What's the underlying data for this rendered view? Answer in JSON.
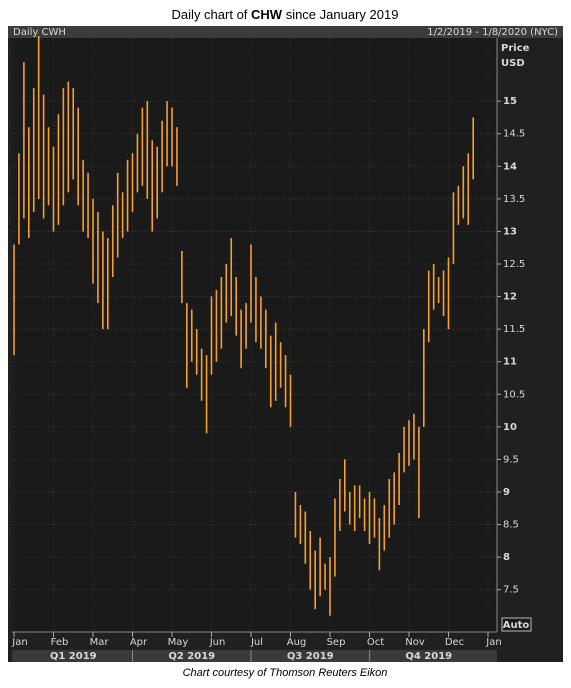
{
  "chart_data": {
    "type": "range",
    "title_parts": [
      "Daily chart of ",
      "CHW",
      " since January 2019"
    ],
    "date_range": "1/2/2019 - 1/8/2020 (NYC)",
    "axis_title": [
      "Price",
      "USD"
    ],
    "scale_mode": "Auto",
    "caption": "Chart courtesy of Thomson Reuters Eikon",
    "categories": [
      "Jan",
      null,
      null,
      null,
      null,
      null,
      null,
      null,
      "Feb",
      null,
      null,
      null,
      null,
      null,
      null,
      null,
      "Mar",
      null,
      null,
      null,
      null,
      null,
      null,
      null,
      "Apr",
      null,
      null,
      null,
      null,
      null,
      null,
      null,
      "May",
      null,
      null,
      null,
      null,
      null,
      null,
      null,
      "Jun",
      null,
      null,
      null,
      null,
      null,
      null,
      null,
      "Jul",
      null,
      null,
      null,
      null,
      null,
      null,
      null,
      "Aug",
      null,
      null,
      null,
      null,
      null,
      null,
      null,
      "Sep",
      null,
      null,
      null,
      null,
      null,
      null,
      null,
      "Oct",
      null,
      null,
      null,
      null,
      null,
      null,
      null,
      "Nov",
      null,
      null,
      null,
      null,
      null,
      null,
      null,
      "Dec",
      null,
      null,
      null,
      null,
      null,
      null,
      null,
      "Jan"
    ],
    "quarters": [
      "Q1 2019",
      "Q2 2019",
      "Q3 2019",
      "Q4 2019"
    ],
    "series": [
      {
        "name": "Daily CWH",
        "color": "#f5a033",
        "low": [
          11.1,
          12.8,
          13.2,
          12.9,
          13.3,
          13.5,
          13.2,
          13.4,
          13.0,
          13.1,
          13.4,
          13.6,
          13.8,
          13.4,
          13.0,
          12.9,
          12.2,
          11.9,
          11.5,
          11.5,
          12.3,
          12.6,
          12.9,
          13.0,
          13.3,
          13.6,
          13.7,
          13.5,
          13.0,
          13.2,
          13.6,
          14.0,
          14.0,
          13.7,
          11.9,
          10.6,
          11.0,
          10.8,
          10.4,
          9.9,
          10.8,
          11.0,
          11.2,
          11.6,
          11.7,
          11.4,
          10.9,
          11.2,
          11.6,
          11.3,
          11.2,
          10.9,
          10.3,
          10.4,
          10.6,
          10.3,
          10.0,
          8.3,
          8.2,
          7.9,
          7.5,
          7.2,
          7.4,
          7.5,
          7.1,
          7.7,
          8.4,
          8.7,
          8.5,
          8.4,
          8.6,
          8.4,
          8.2,
          8.3,
          7.8,
          8.1,
          8.3,
          8.5,
          8.8,
          9.3,
          9.4,
          9.5,
          8.6,
          10.0,
          11.3,
          11.8,
          11.9,
          11.7,
          11.5,
          12.5,
          13.1,
          13.2,
          13.1,
          13.8,
          null,
          null,
          null
        ],
        "high": [
          12.8,
          14.2,
          15.6,
          14.6,
          15.2,
          16.0,
          15.1,
          14.6,
          14.3,
          14.8,
          15.2,
          15.3,
          15.2,
          14.9,
          14.1,
          13.9,
          13.5,
          13.3,
          13.0,
          12.9,
          13.4,
          13.9,
          13.6,
          14.1,
          14.2,
          14.5,
          14.9,
          15.0,
          14.4,
          14.3,
          14.7,
          15.0,
          14.9,
          14.6,
          12.7,
          11.9,
          11.8,
          11.5,
          11.2,
          11.1,
          12.0,
          12.1,
          12.3,
          12.5,
          12.9,
          12.3,
          11.8,
          11.9,
          12.8,
          12.3,
          12.0,
          11.8,
          11.4,
          11.6,
          11.3,
          11.1,
          10.8,
          9.0,
          8.8,
          8.7,
          8.4,
          8.1,
          8.3,
          7.9,
          8.0,
          8.9,
          9.2,
          9.5,
          9.0,
          9.1,
          9.1,
          8.9,
          9.0,
          8.9,
          8.6,
          8.8,
          9.2,
          9.3,
          9.6,
          10.0,
          10.1,
          10.2,
          10.0,
          11.5,
          12.4,
          12.5,
          12.3,
          12.4,
          12.6,
          13.6,
          13.7,
          14.0,
          14.2,
          14.75,
          null,
          null,
          null
        ]
      }
    ],
    "ylim": [
      6.85,
      15.97
    ],
    "yticks": [
      7.5,
      8,
      8.5,
      9,
      9.5,
      10,
      10.5,
      11,
      11.5,
      12,
      12.5,
      13,
      13.5,
      14,
      14.5,
      15
    ],
    "grid": true
  }
}
